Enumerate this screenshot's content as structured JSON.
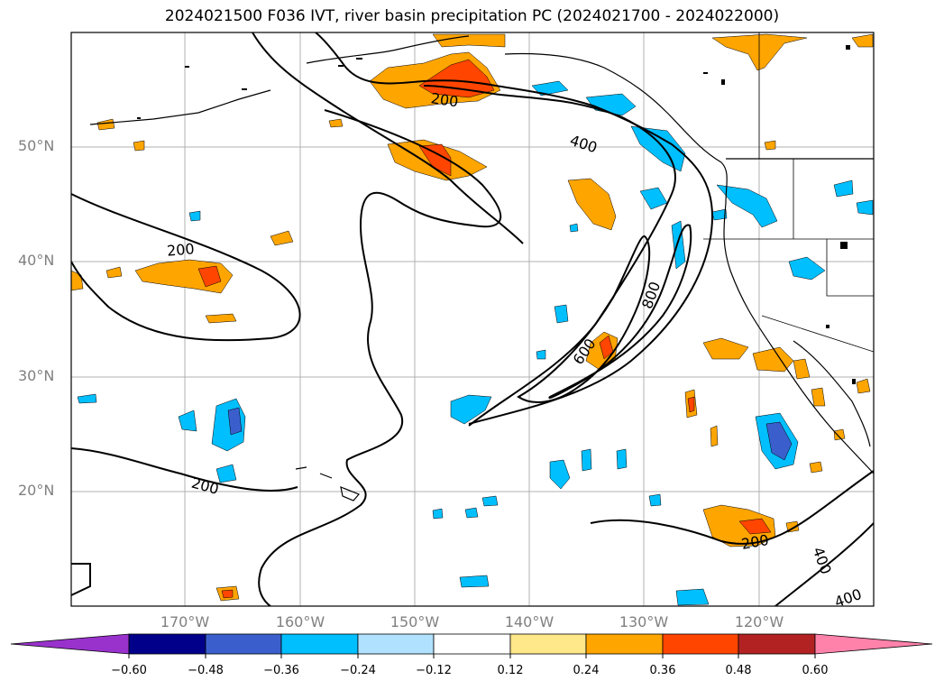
{
  "title": "2024021500 F036 IVT, river basin precipitation PC (2024021700 - 2024022000)",
  "lat_labels": [
    "50°N",
    "40°N",
    "30°N",
    "20°N"
  ],
  "lon_labels": [
    "170°W",
    "160°W",
    "150°W",
    "140°W",
    "130°W",
    "120°W"
  ],
  "ivt_contour_labels": {
    "a": "200",
    "b": "200",
    "c": "200",
    "d": "200",
    "e": "400",
    "f": "400",
    "g": "400",
    "h": "600",
    "i": "800"
  },
  "colorbar": {
    "ticks": [
      "−0.60",
      "−0.48",
      "−0.36",
      "−0.24",
      "−0.12",
      "0.12",
      "0.24",
      "0.36",
      "0.48",
      "0.60"
    ],
    "colors": [
      "#9932cc",
      "#00008b",
      "#3a5fcd",
      "#00bfff",
      "#b0e2ff",
      "#ffffff",
      "#ffe88a",
      "#ffa500",
      "#ff4500",
      "#b22222",
      "#ff82ab"
    ]
  }
}
